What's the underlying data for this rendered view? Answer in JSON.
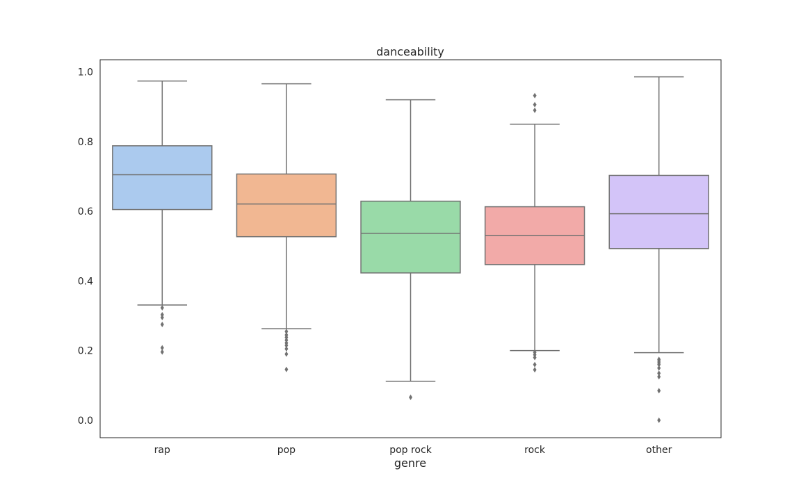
{
  "chart_data": {
    "type": "box",
    "title": "danceability",
    "xlabel": "genre",
    "ylabel": "",
    "ylim": [
      -0.05,
      1.035
    ],
    "yticks": [
      0.0,
      0.2,
      0.4,
      0.6,
      0.8,
      1.0
    ],
    "ytick_labels": [
      "0.0",
      "0.2",
      "0.4",
      "0.6",
      "0.8",
      "1.0"
    ],
    "grid": false,
    "categories": [
      "rap",
      "pop",
      "pop rock",
      "rock",
      "other"
    ],
    "colors": [
      "#abcaee",
      "#f1b792",
      "#99daa8",
      "#f2aaa8",
      "#d3c4f8"
    ],
    "line_color": "#717171",
    "boxes": [
      {
        "name": "rap",
        "whisker_low": 0.331,
        "q1": 0.605,
        "median": 0.705,
        "q3": 0.788,
        "whisker_high": 0.974,
        "outliers": [
          0.323,
          0.303,
          0.295,
          0.275,
          0.208,
          0.196
        ]
      },
      {
        "name": "pop",
        "whisker_low": 0.263,
        "q1": 0.527,
        "median": 0.621,
        "q3": 0.707,
        "whisker_high": 0.966,
        "outliers": [
          0.255,
          0.245,
          0.238,
          0.23,
          0.222,
          0.215,
          0.205,
          0.19,
          0.146
        ]
      },
      {
        "name": "pop rock",
        "whisker_low": 0.112,
        "q1": 0.423,
        "median": 0.537,
        "q3": 0.629,
        "whisker_high": 0.92,
        "outliers": [
          0.066
        ]
      },
      {
        "name": "rock",
        "whisker_low": 0.2,
        "q1": 0.447,
        "median": 0.531,
        "q3": 0.613,
        "whisker_high": 0.85,
        "outliers": [
          0.932,
          0.906,
          0.89,
          0.195,
          0.188,
          0.18,
          0.16,
          0.145
        ]
      },
      {
        "name": "other",
        "whisker_low": 0.194,
        "q1": 0.493,
        "median": 0.593,
        "q3": 0.703,
        "whisker_high": 0.986,
        "outliers": [
          0.175,
          0.17,
          0.165,
          0.16,
          0.15,
          0.135,
          0.125,
          0.085,
          0.0
        ]
      }
    ]
  }
}
